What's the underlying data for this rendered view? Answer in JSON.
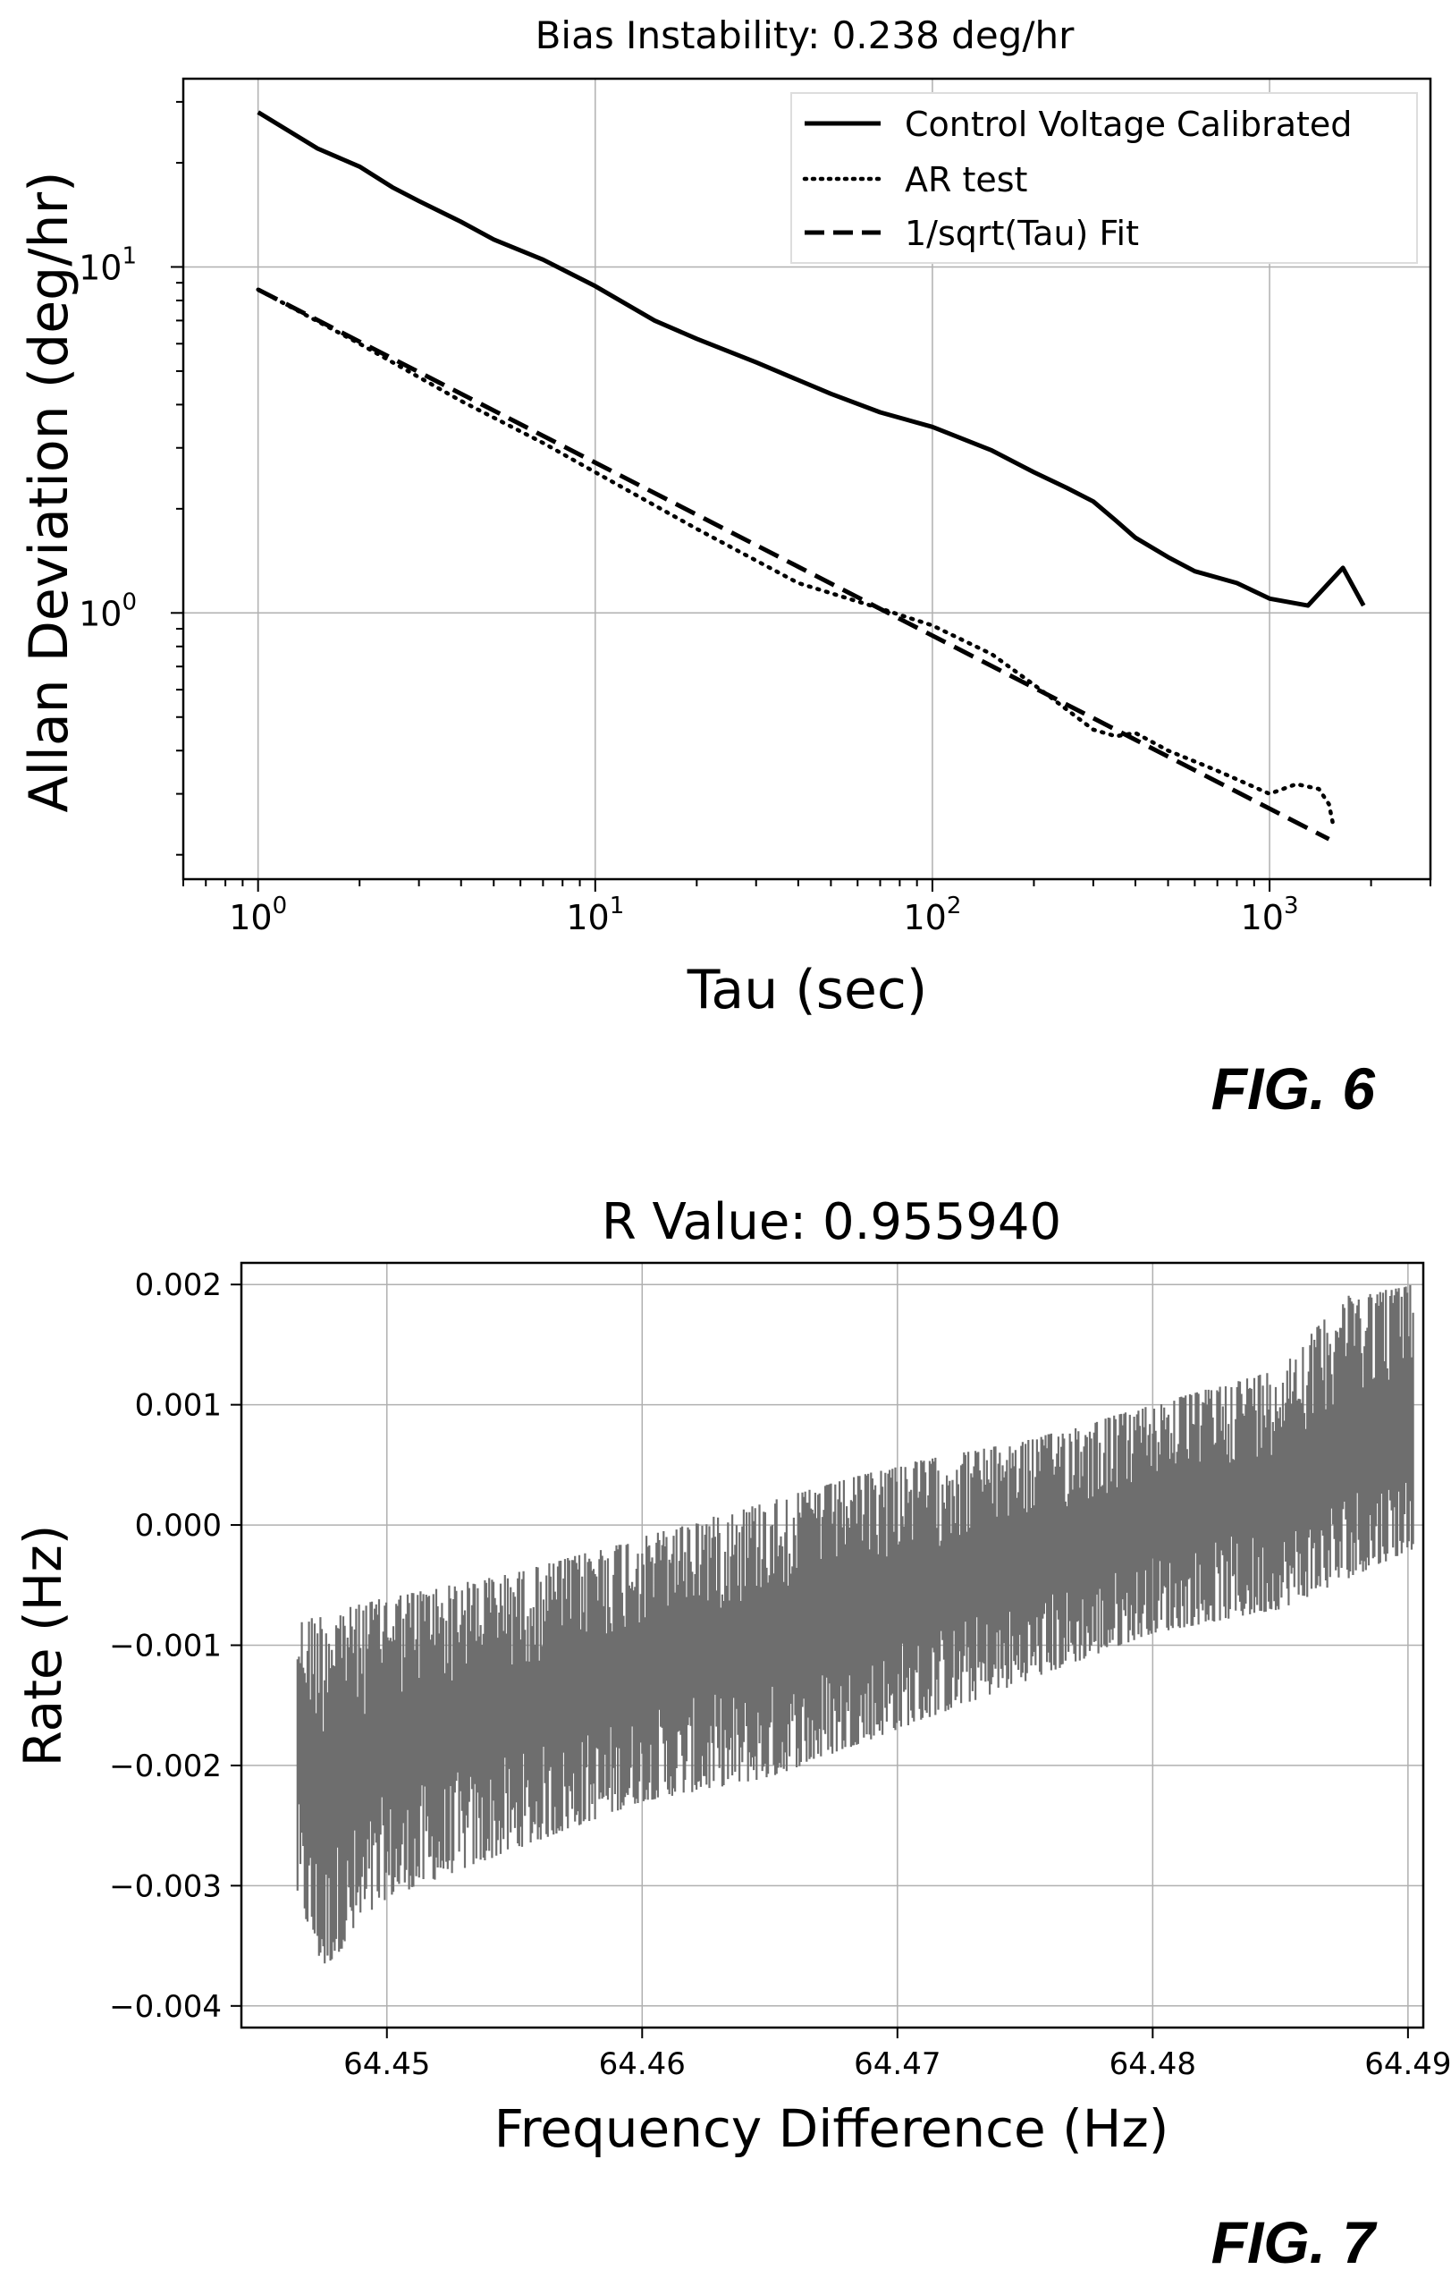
{
  "fig6_label": "FIG. 6",
  "fig7_label": "FIG. 7",
  "chart_data": [
    {
      "type": "line",
      "title": "Bias Instability: 0.238 deg/hr",
      "xlabel": "Tau (sec)",
      "ylabel": "Allan Deviation (deg/hr)",
      "xscale": "log",
      "yscale": "log",
      "xlim": [
        0.6,
        3000
      ],
      "ylim": [
        0.17,
        35
      ],
      "x_ticks": [
        {
          "base": "10",
          "exp": "0"
        },
        {
          "base": "10",
          "exp": "1"
        },
        {
          "base": "10",
          "exp": "2"
        },
        {
          "base": "10",
          "exp": "3"
        }
      ],
      "y_ticks": [
        {
          "base": "10",
          "exp": "0"
        },
        {
          "base": "10",
          "exp": "1"
        }
      ],
      "grid": true,
      "legend_position": "top-right",
      "series": [
        {
          "name": "Control Voltage Calibrated",
          "style": "solid",
          "x": [
            1,
            1.5,
            2,
            2.5,
            3,
            4,
            5,
            7,
            10,
            15,
            20,
            30,
            50,
            70,
            100,
            150,
            200,
            250,
            300,
            350,
            400,
            500,
            600,
            800,
            1000,
            1300,
            1650,
            1900
          ],
          "y": [
            28,
            22,
            19.5,
            17,
            15.5,
            13.5,
            12,
            10.5,
            8.8,
            7.0,
            6.2,
            5.3,
            4.3,
            3.8,
            3.45,
            2.95,
            2.55,
            2.3,
            2.1,
            1.85,
            1.65,
            1.45,
            1.32,
            1.22,
            1.1,
            1.05,
            1.35,
            1.05
          ]
        },
        {
          "name": "AR test",
          "style": "dotted",
          "x": [
            1,
            2,
            4,
            7,
            10,
            20,
            40,
            70,
            100,
            150,
            200,
            300,
            350,
            400,
            500,
            700,
            1000,
            1200,
            1400,
            1500,
            1550
          ],
          "y": [
            8.6,
            6.0,
            4.1,
            3.1,
            2.55,
            1.75,
            1.22,
            1.03,
            0.92,
            0.76,
            0.62,
            0.46,
            0.44,
            0.45,
            0.4,
            0.35,
            0.3,
            0.32,
            0.31,
            0.28,
            0.24
          ]
        },
        {
          "name": "1/sqrt(Tau) Fit",
          "style": "dashed",
          "x": [
            1,
            1500
          ],
          "y": [
            8.6,
            0.222
          ]
        }
      ]
    },
    {
      "type": "line",
      "title": "R Value: 0.955940",
      "xlabel": "Frequency Difference (Hz)",
      "ylabel": "Rate (Hz)",
      "xlim": [
        64.4443,
        64.4906
      ],
      "ylim": [
        -0.00418,
        0.00218
      ],
      "x_ticks": [
        "64.45",
        "64.46",
        "64.47",
        "64.48",
        "64.49"
      ],
      "y_ticks": [
        "−0.004",
        "−0.003",
        "−0.002",
        "−0.001",
        "0.000",
        "0.001",
        "0.002"
      ],
      "grid": true,
      "series": [
        {
          "color": "#6e6e6e",
          "x_range": [
            64.4465,
            64.4902
          ],
          "trend": [
            -0.0019,
            0.0005
          ],
          "noise_amplitude": 0.0007,
          "envelope_upper": [
            [
              64.4465,
              -0.0008
            ],
            [
              64.45,
              -0.0006
            ],
            [
              64.455,
              -0.0004
            ],
            [
              64.46,
              -0.0001
            ],
            [
              64.465,
              0.0002
            ],
            [
              64.47,
              0.0005
            ],
            [
              64.475,
              0.0007
            ],
            [
              64.48,
              0.001
            ],
            [
              64.485,
              0.0013
            ],
            [
              64.4875,
              0.0019
            ],
            [
              64.4902,
              0.002
            ]
          ],
          "envelope_lower": [
            [
              64.4465,
              -0.0031
            ],
            [
              64.4475,
              -0.0037
            ],
            [
              64.45,
              -0.0031
            ],
            [
              64.455,
              -0.0027
            ],
            [
              64.46,
              -0.0023
            ],
            [
              64.465,
              -0.0021
            ],
            [
              64.47,
              -0.0017
            ],
            [
              64.475,
              -0.0013
            ],
            [
              64.48,
              -0.0009
            ],
            [
              64.485,
              -0.0007
            ],
            [
              64.4902,
              -0.0002
            ]
          ]
        }
      ]
    }
  ]
}
